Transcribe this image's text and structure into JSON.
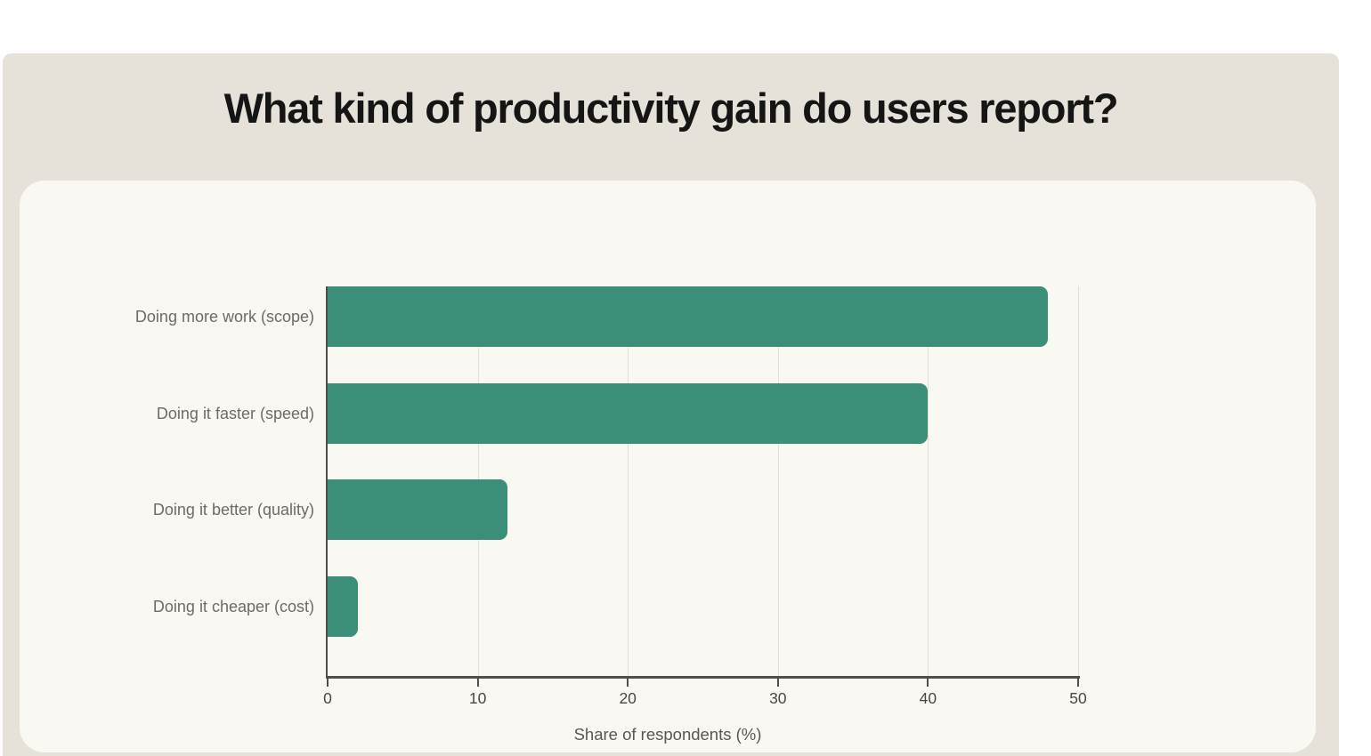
{
  "title": "What kind of productivity gain do users report?",
  "chart_data": {
    "type": "bar",
    "orientation": "horizontal",
    "title": "What kind of productivity gain do users report?",
    "categories": [
      "Doing more work (scope)",
      "Doing it faster (speed)",
      "Doing it better (quality)",
      "Doing it cheaper (cost)"
    ],
    "values": [
      48,
      40,
      12,
      2
    ],
    "xlabel": "Share of respondents (%)",
    "ylabel": "",
    "xlim": [
      0,
      50
    ],
    "xticks": [
      0,
      10,
      20,
      30,
      40,
      50
    ],
    "grid": "vertical gridlines only",
    "legend": "none"
  },
  "colors": {
    "page_background": "#ffffff",
    "panel_background": "#e6e2d9",
    "card_background": "#faf8f2",
    "bar": "#3b8e77",
    "gridline": "#e3dfd6",
    "axis_line": "#4e4e4e",
    "tick_label": "#474747",
    "category_label": "#6b6b6b",
    "axis_title": "#575757",
    "title": "#151515"
  }
}
